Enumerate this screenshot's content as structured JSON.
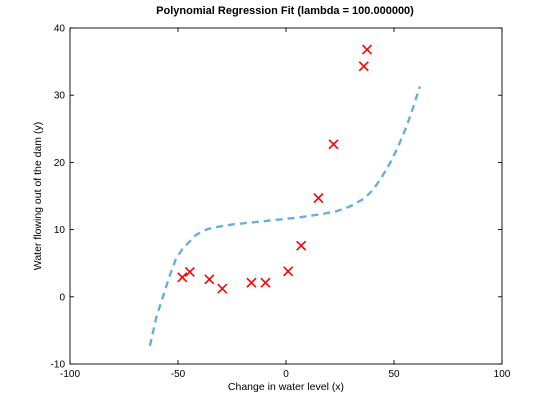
{
  "chart_data": {
    "type": "scatter",
    "title": "Polynomial Regression Fit (lambda = 100.000000)",
    "xlabel": "Change in water level (x)",
    "ylabel": "Water flowing out of the dam (y)",
    "xlim": [
      -100,
      100
    ],
    "ylim": [
      -10,
      40
    ],
    "xticks": [
      -100,
      -50,
      0,
      50,
      100
    ],
    "yticks": [
      -10,
      0,
      10,
      20,
      30,
      40
    ],
    "xtick_labels": [
      "-100",
      "-50",
      "0",
      "50",
      "100"
    ],
    "ytick_labels": [
      "-10",
      "0",
      "10",
      "20",
      "30",
      "40"
    ],
    "grid": false,
    "series": [
      {
        "kind": "markers",
        "marker": "x",
        "color": "#ff0000",
        "points": [
          [
            -48,
            2.9
          ],
          [
            -44.5,
            3.7
          ],
          [
            -35.5,
            2.6
          ],
          [
            -29.5,
            1.2
          ],
          [
            -16,
            2.1
          ],
          [
            -9.5,
            2.1
          ],
          [
            1,
            3.8
          ],
          [
            7,
            7.6
          ],
          [
            15,
            14.7
          ],
          [
            22,
            22.7
          ],
          [
            36,
            34.3
          ],
          [
            37.5,
            36.8
          ]
        ]
      },
      {
        "kind": "line",
        "style": "dashed",
        "color": "#6aaedb",
        "x": [
          -63,
          -60,
          -57,
          -54,
          -51,
          -48,
          -45,
          -42,
          -39,
          -36,
          -30,
          -24,
          -18,
          -12,
          -6,
          0,
          6,
          12,
          18,
          24,
          30,
          36,
          40,
          44,
          48,
          52,
          56,
          59,
          62
        ],
        "y": [
          -7.3,
          -3.0,
          0.0,
          3.0,
          5.6,
          7.1,
          8.1,
          9.1,
          9.7,
          10.1,
          10.5,
          10.8,
          11.0,
          11.2,
          11.4,
          11.6,
          11.8,
          12.1,
          12.4,
          12.8,
          13.5,
          14.6,
          15.8,
          17.6,
          19.8,
          22.4,
          25.5,
          28.3,
          31.3
        ]
      }
    ]
  }
}
